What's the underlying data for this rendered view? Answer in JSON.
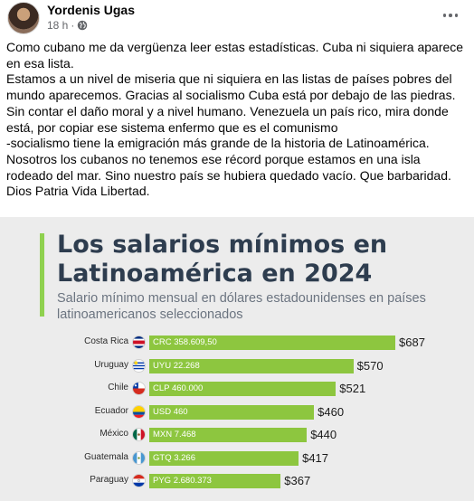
{
  "post": {
    "author": "Yordenis Ugas",
    "time": "18 h",
    "more_icon": "more-horizontal-icon",
    "audience_icon": "globe-icon",
    "paragraphs": [
      "Como cubano me da vergüenza leer estas estadísticas. Cuba ni siquiera aparece en esa lista.",
      "Estamos a un nivel de miseria que ni siquiera en las listas de países pobres del mundo aparecemos. Gracias al socialismo Cuba está por debajo de las piedras. Sin contar el daño moral y a nivel humano. Venezuela un país rico, mira donde está, por copiar ese sistema enfermo que es el comunismo",
      "-socialismo tiene la emigración más grande de la historia de Latinoamérica.",
      "Nosotros los cubanos no tenemos ese récord porque estamos en una isla rodeado del mar. Sino nuestro país se hubiera quedado vacío. Que barbaridad. Dios Patria Vida Libertad."
    ]
  },
  "infographic": {
    "title": "Los salarios mínimos en Latinoamérica en 2024",
    "subtitle": "Salario mínimo mensual en dólares estadounidenses en países latinoamericanos seleccionados",
    "accent_color": "#8fd14f",
    "bar_color": "#8dc63f"
  },
  "chart_data": {
    "type": "bar",
    "orientation": "horizontal",
    "title": "Los salarios mínimos en Latinoamérica en 2024",
    "subtitle": "Salario mínimo mensual en dólares estadounidenses en países latinoamericanos seleccionados",
    "categories": [
      "Costa Rica",
      "Uruguay",
      "Chile",
      "Ecuador",
      "México",
      "Guatemala",
      "Paraguay"
    ],
    "values": [
      687,
      570,
      521,
      460,
      440,
      417,
      367
    ],
    "value_labels": [
      "$687",
      "$570",
      "$521",
      "$460",
      "$440",
      "$417",
      "$367"
    ],
    "local_currency_labels": [
      "CRC 358.609,50",
      "UYU 22.268",
      "CLP 460.000",
      "USD 460",
      "MXN 7.468",
      "GTQ 3.266",
      "PYG 2.680.373"
    ],
    "flags": [
      "costa-rica-flag-icon",
      "uruguay-flag-icon",
      "chile-flag-icon",
      "ecuador-flag-icon",
      "mexico-flag-icon",
      "guatemala-flag-icon",
      "paraguay-flag-icon"
    ],
    "xlim": [
      0,
      700
    ]
  }
}
